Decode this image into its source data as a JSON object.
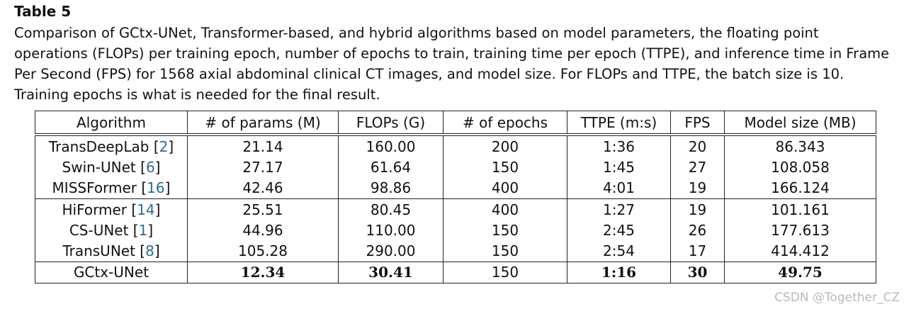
{
  "title": "Table 5",
  "caption": "Comparison of GCtx-UNet, Transformer-based, and hybrid algorithms based on model parameters, the floating point operations (FLOPs) per training epoch, number of epochs to train, training time per epoch (TTPE), and inference time in Frame Per Second (FPS) for 1568 axial abdominal clinical CT images, and model size. For FLOPs and TTPE, the batch size is 10. Training epochs is what is needed for the final result.",
  "headers": [
    "Algorithm",
    "# of params (M)",
    "FLOPs (G)",
    "# of epochs",
    "TTPE (m:s)",
    "FPS",
    "Model size (MB)"
  ],
  "rows": [
    {
      "name": "TransDeepLab",
      "ref": "2",
      "params": "21.14",
      "flops": "160.00",
      "epochs": "200",
      "ttpe": "1:36",
      "fps": "20",
      "size": "86.343"
    },
    {
      "name": "Swin-UNet",
      "ref": "6",
      "params": "27.17",
      "flops": "61.64",
      "epochs": "150",
      "ttpe": "1:45",
      "fps": "27",
      "size": "108.058"
    },
    {
      "name": "MISSFormer",
      "ref": "16",
      "params": "42.46",
      "flops": "98.86",
      "epochs": "400",
      "ttpe": "4:01",
      "fps": "19",
      "size": "166.124"
    },
    {
      "name": "HiFormer",
      "ref": "14",
      "params": "25.51",
      "flops": "80.45",
      "epochs": "400",
      "ttpe": "1:27",
      "fps": "19",
      "size": "101.161"
    },
    {
      "name": "CS-UNet",
      "ref": "1",
      "params": "44.96",
      "flops": "110.00",
      "epochs": "150",
      "ttpe": "2:45",
      "fps": "26",
      "size": "177.613"
    },
    {
      "name": "TransUNet",
      "ref": "8",
      "params": "105.28",
      "flops": "290.00",
      "epochs": "150",
      "ttpe": "2:54",
      "fps": "17",
      "size": "414.412"
    },
    {
      "name": "GCtx-UNet",
      "ref": "",
      "params": "12.34",
      "flops": "30.41",
      "epochs": "150",
      "ttpe": "1:16",
      "fps": "30",
      "size": "49.75"
    }
  ],
  "watermark": "CSDN @Together_CZ"
}
